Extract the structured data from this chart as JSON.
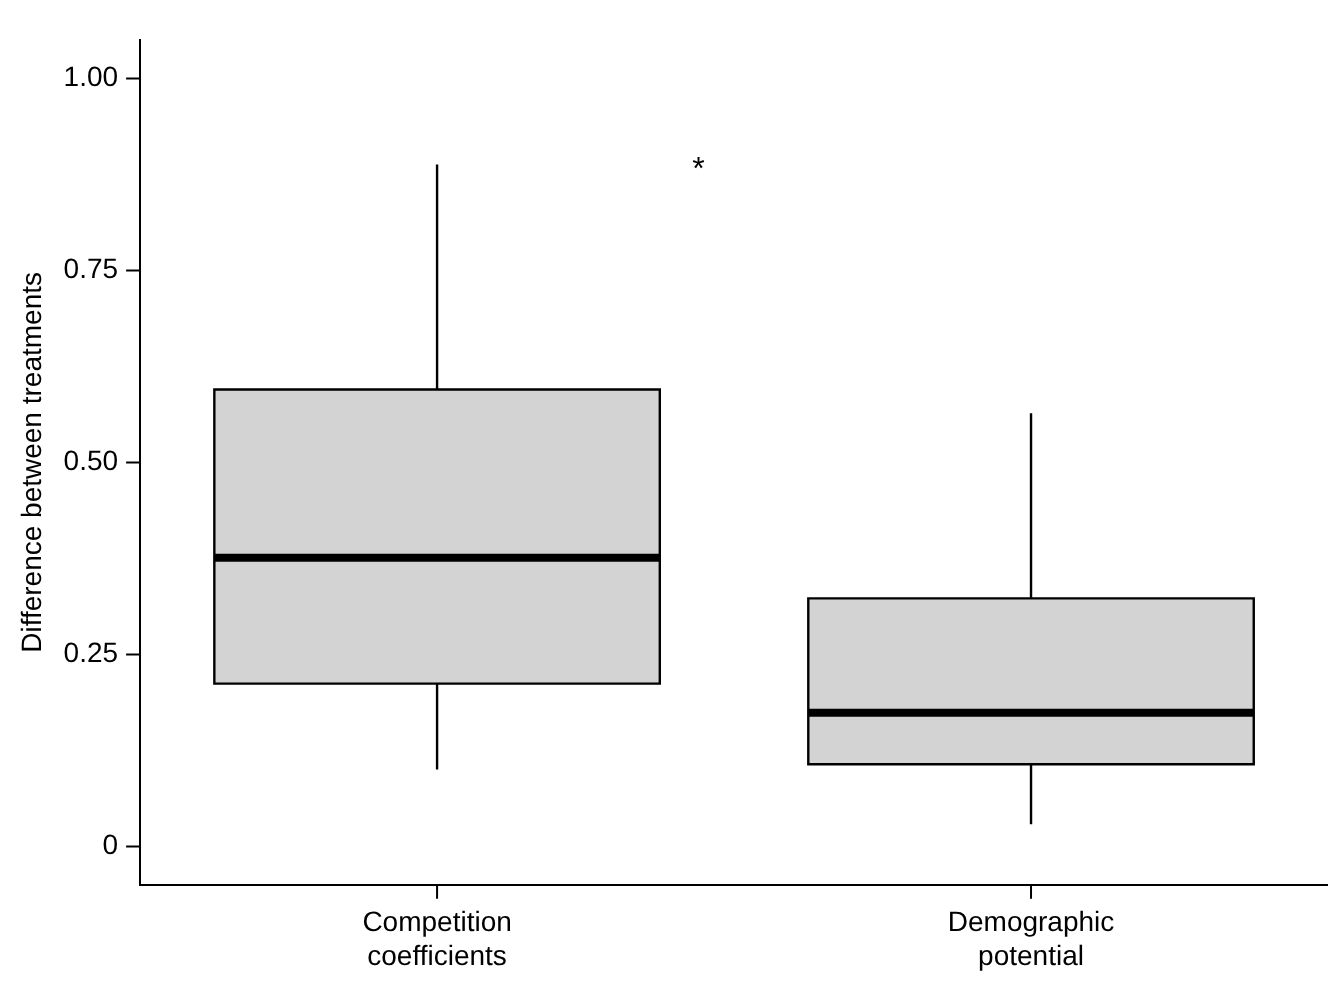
{
  "chart_data": {
    "type": "box",
    "ylabel": "Difference between treatments",
    "categories": [
      "Competition coefficients",
      "Demographic potential"
    ],
    "boxes": [
      {
        "low": 0.1,
        "q1": 0.212,
        "median": 0.376,
        "q3": 0.595,
        "high": 0.888
      },
      {
        "low": 0.029,
        "q1": 0.107,
        "median": 0.174,
        "q3": 0.323,
        "high": 0.564
      }
    ],
    "color": "#d3d3d3",
    "ylim": [
      -0.05,
      1.05
    ],
    "yticks": [
      {
        "value": 0,
        "label": "0"
      },
      {
        "value": 0.25,
        "label": "0.25"
      },
      {
        "value": 0.5,
        "label": "0.50"
      },
      {
        "value": 0.75,
        "label": "0.75"
      },
      {
        "value": 1,
        "label": "1.00"
      }
    ],
    "grid": false,
    "legend": false,
    "annotations": [
      "*"
    ]
  }
}
